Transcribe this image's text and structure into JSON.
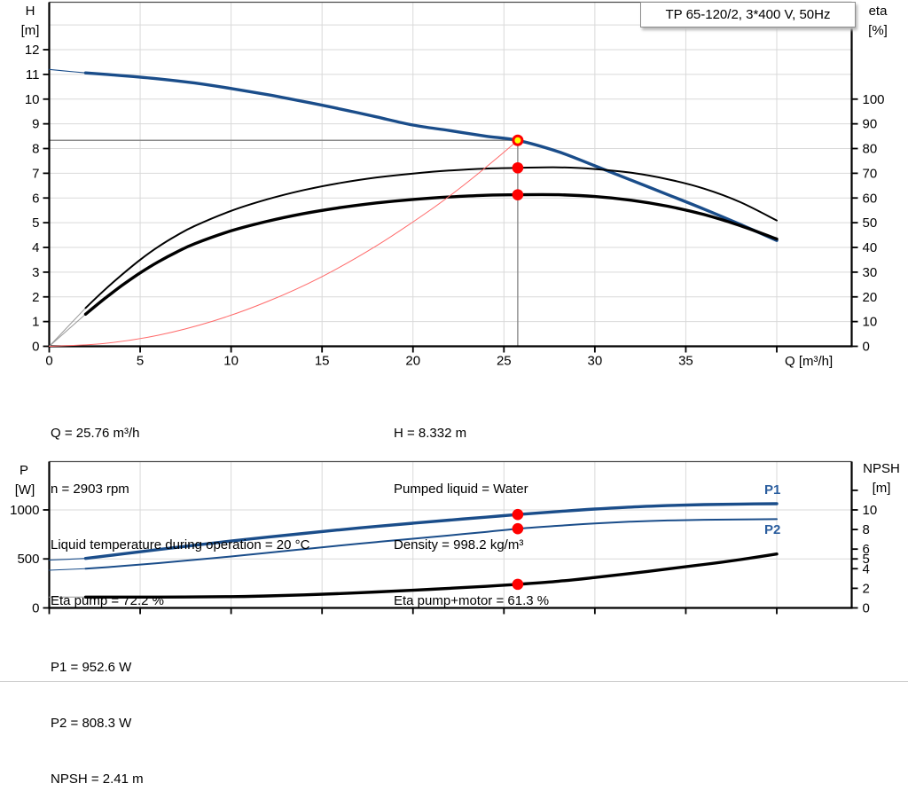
{
  "title_box": {
    "label": "TP 65-120/2, 3*400 V, 50Hz"
  },
  "labels": {
    "h": "H",
    "h_unit": "[m]",
    "eta": "eta",
    "eta_unit": "[%]",
    "q": "Q [m³/h]",
    "p": "P",
    "p_unit": "[W]",
    "npsh": "NPSH",
    "npsh_unit": "[m]",
    "p1": "P1",
    "p2": "P2"
  },
  "info_top": {
    "left": [
      "Q = 25.76 m³/h",
      "n = 2903 rpm",
      "Liquid temperature during operation = 20 °C",
      "Eta pump = 72.2 %"
    ],
    "right": [
      "H = 8.332 m",
      "Pumped liquid = Water",
      "Density = 998.2 kg/m³",
      "Eta pump+motor = 61.3 %"
    ]
  },
  "info_bottom": [
    "P1 = 952.6 W",
    "P2 = 808.3 W",
    "NPSH = 2.41 m"
  ],
  "colors": {
    "curve_blue": "#1a4d8a",
    "label_blue": "#2a5d9e",
    "curve_black": "#000000",
    "system_red": "#ff6a6a",
    "dot_red": "#ff0000",
    "dot_yellow": "#ffff00",
    "lead_gray": "#999999",
    "grid": "#d9d9d9",
    "marker_gray": "#8a8a8a"
  },
  "operating_point": {
    "q": 25.76,
    "h": 8.332,
    "eta_pump": 72.2,
    "eta_pump_motor": 61.3,
    "p1": 952.6,
    "p2": 808.3,
    "npsh": 2.41
  },
  "chart_data": [
    {
      "type": "line",
      "name": "hq-eta-chart",
      "title": "TP 65-120/2, 3*400 V, 50Hz",
      "xlabel": "Q [m³/h]",
      "ylabel_left": "H [m]",
      "ylabel_right": "eta [%]",
      "x_range": [
        0,
        44.12
      ],
      "y_left_range": [
        0,
        13.92
      ],
      "y_right_range": [
        0,
        139.2
      ],
      "x_ticks_labeled": [
        0,
        5,
        10,
        15,
        20,
        25,
        30,
        35
      ],
      "x_ticks_unlabeled": [
        40
      ],
      "y_ticks_left": [
        0,
        1,
        2,
        3,
        4,
        5,
        6,
        7,
        8,
        9,
        10,
        11,
        12
      ],
      "y_ticks_right": [
        0,
        10,
        20,
        30,
        40,
        50,
        60,
        70,
        80,
        90,
        100
      ],
      "y_ticks_right_unlabeled": [],
      "grid_x": [
        5,
        10,
        15,
        20,
        25,
        30,
        35,
        40
      ],
      "grid_y_right": [
        10,
        20,
        30,
        40,
        50,
        60,
        70,
        80,
        90,
        100,
        110,
        120,
        130
      ],
      "grid_y_left": [],
      "marker_lines": [
        {
          "axis": "left",
          "from": [
            0,
            8.332
          ],
          "to": [
            25.76,
            8.332
          ]
        },
        {
          "axis": "left",
          "from": [
            25.76,
            8.332
          ],
          "to": [
            25.76,
            0
          ]
        }
      ],
      "series": [
        {
          "name": "h-curve-lead",
          "axis": "left",
          "color": "#1a4d8a",
          "width": 1.1,
          "points": [
            [
              0,
              11.2
            ],
            [
              1,
              11.13
            ],
            [
              2,
              11.06
            ]
          ]
        },
        {
          "name": "h-curve",
          "axis": "left",
          "color": "#1a4d8a",
          "width": 3.4,
          "points": [
            [
              2,
              11.06
            ],
            [
              4,
              10.95
            ],
            [
              6,
              10.82
            ],
            [
              8,
              10.65
            ],
            [
              10,
              10.43
            ],
            [
              12,
              10.18
            ],
            [
              14,
              9.9
            ],
            [
              16,
              9.6
            ],
            [
              18,
              9.28
            ],
            [
              20,
              8.95
            ],
            [
              22,
              8.73
            ],
            [
              24,
              8.5
            ],
            [
              25.76,
              8.33
            ],
            [
              28,
              7.87
            ],
            [
              30,
              7.3
            ],
            [
              32,
              6.72
            ],
            [
              34,
              6.14
            ],
            [
              36,
              5.55
            ],
            [
              38,
              4.93
            ],
            [
              40,
              4.28
            ]
          ]
        },
        {
          "name": "eta-pump-lead",
          "axis": "right",
          "color": "#999999",
          "width": 1,
          "points": [
            [
              0,
              0
            ],
            [
              2,
              15.5
            ]
          ]
        },
        {
          "name": "eta-pump-curve",
          "axis": "right",
          "color": "#000000",
          "width": 2,
          "points": [
            [
              2,
              15.5
            ],
            [
              3,
              22.5
            ],
            [
              4,
              29
            ],
            [
              5,
              35
            ],
            [
              6,
              40.3
            ],
            [
              7,
              44.8
            ],
            [
              8,
              48.7
            ],
            [
              10,
              54.8
            ],
            [
              12,
              59.5
            ],
            [
              14,
              63.2
            ],
            [
              16,
              66.1
            ],
            [
              18,
              68.3
            ],
            [
              20,
              69.9
            ],
            [
              22,
              71.1
            ],
            [
              24,
              71.9
            ],
            [
              25.76,
              72.2
            ],
            [
              28,
              72.4
            ],
            [
              30,
              71.7
            ],
            [
              32,
              70.2
            ],
            [
              34,
              67.6
            ],
            [
              36,
              63.8
            ],
            [
              38,
              58.3
            ],
            [
              40,
              50.9
            ]
          ]
        },
        {
          "name": "eta-pump-motor-lead",
          "axis": "right",
          "color": "#999999",
          "width": 1,
          "points": [
            [
              0,
              0
            ],
            [
              2,
              13
            ]
          ]
        },
        {
          "name": "eta-pump-motor-curve",
          "axis": "right",
          "color": "#000000",
          "width": 3.4,
          "points": [
            [
              2,
              13
            ],
            [
              3,
              19
            ],
            [
              4,
              24.6
            ],
            [
              5,
              29.7
            ],
            [
              6,
              34.2
            ],
            [
              7,
              38.1
            ],
            [
              8,
              41.5
            ],
            [
              10,
              46.7
            ],
            [
              12,
              50.6
            ],
            [
              14,
              53.7
            ],
            [
              16,
              56.1
            ],
            [
              18,
              58
            ],
            [
              20,
              59.4
            ],
            [
              22,
              60.4
            ],
            [
              24,
              61.1
            ],
            [
              25.76,
              61.3
            ],
            [
              28,
              61.3
            ],
            [
              30,
              60.6
            ],
            [
              32,
              59.1
            ],
            [
              34,
              56.7
            ],
            [
              36,
              53.3
            ],
            [
              38,
              48.8
            ],
            [
              40,
              43.4
            ]
          ]
        },
        {
          "name": "system-curve",
          "axis": "left",
          "color": "#ff6a6a",
          "width": 1,
          "points": [
            [
              0,
              0
            ],
            [
              3,
              0.11
            ],
            [
              6,
              0.45
            ],
            [
              9,
              1.02
            ],
            [
              12,
              1.81
            ],
            [
              15,
              2.82
            ],
            [
              18,
              4.07
            ],
            [
              21,
              5.54
            ],
            [
              23,
              6.64
            ],
            [
              24.5,
              7.54
            ],
            [
              25.76,
              8.33
            ]
          ]
        }
      ],
      "points": [
        {
          "name": "duty-point",
          "axis": "left",
          "q": 25.76,
          "v": 8.332,
          "style": "yellow"
        },
        {
          "name": "eta-pump-point",
          "axis": "right",
          "q": 25.76,
          "v": 72.2,
          "style": "red"
        },
        {
          "name": "eta-pump-motor-point",
          "axis": "right",
          "q": 25.76,
          "v": 61.3,
          "style": "red"
        }
      ]
    },
    {
      "type": "line",
      "name": "power-npsh-chart",
      "xlabel": "",
      "ylabel_left": "P [W]",
      "ylabel_right": "NPSH [m]",
      "x_range": [
        0,
        44.12
      ],
      "y_left_range": [
        0,
        1493
      ],
      "y_right_range": [
        0,
        14.93
      ],
      "x_ticks_labeled": [],
      "x_ticks_unlabeled": [
        0,
        5,
        10,
        15,
        20,
        25,
        30,
        35,
        40
      ],
      "y_ticks_left": [
        0,
        500,
        1000
      ],
      "y_ticks_right": [
        0,
        2,
        4,
        5,
        6,
        8,
        10
      ],
      "y_ticks_right_unlabeled": [
        12
      ],
      "grid_x": [
        5,
        10,
        15,
        20,
        25,
        30,
        35,
        40
      ],
      "grid_y_right": [],
      "grid_y_left": [
        500,
        1000
      ],
      "marker_lines": [],
      "series": [
        {
          "name": "p1-curve-lead",
          "axis": "left",
          "color": "#1a4d8a",
          "width": 1.1,
          "points": [
            [
              0,
              488
            ],
            [
              2,
              505
            ]
          ]
        },
        {
          "name": "p1-curve",
          "axis": "left",
          "color": "#1a4d8a",
          "width": 3.4,
          "points": [
            [
              2,
              505
            ],
            [
              4,
              550
            ],
            [
              6,
              595
            ],
            [
              8,
              640
            ],
            [
              10,
              682
            ],
            [
              12,
              722
            ],
            [
              14,
              760
            ],
            [
              16,
              797
            ],
            [
              18,
              832
            ],
            [
              20,
              864
            ],
            [
              22,
              896
            ],
            [
              24,
              926
            ],
            [
              25.76,
              952.6
            ],
            [
              28,
              984
            ],
            [
              30,
              1009
            ],
            [
              32,
              1029
            ],
            [
              34,
              1044
            ],
            [
              36,
              1054
            ],
            [
              38,
              1060
            ],
            [
              40,
              1063
            ]
          ]
        },
        {
          "name": "p2-curve-lead",
          "axis": "left",
          "color": "#1a4d8a",
          "width": 1,
          "points": [
            [
              0,
              385
            ],
            [
              2,
              400
            ]
          ]
        },
        {
          "name": "p2-curve",
          "axis": "left",
          "color": "#1a4d8a",
          "width": 2,
          "points": [
            [
              2,
              400
            ],
            [
              4,
              427
            ],
            [
              6,
              457
            ],
            [
              8,
              490
            ],
            [
              10,
              525
            ],
            [
              12,
              562
            ],
            [
              14,
              600
            ],
            [
              16,
              637
            ],
            [
              18,
              672
            ],
            [
              20,
              706
            ],
            [
              22,
              740
            ],
            [
              24,
              775
            ],
            [
              25.76,
              808.3
            ],
            [
              28,
              838
            ],
            [
              30,
              862
            ],
            [
              32,
              880
            ],
            [
              34,
              892
            ],
            [
              36,
              899
            ],
            [
              38,
              903
            ],
            [
              40,
              906
            ]
          ]
        },
        {
          "name": "npsh-curve-lead",
          "axis": "right",
          "color": "#999999",
          "width": 1,
          "points": [
            [
              0,
              1.1
            ],
            [
              2,
              1.1
            ]
          ]
        },
        {
          "name": "npsh-curve",
          "axis": "right",
          "color": "#000000",
          "width": 3.4,
          "points": [
            [
              2,
              1.1
            ],
            [
              6,
              1.1
            ],
            [
              10,
              1.15
            ],
            [
              12,
              1.22
            ],
            [
              14,
              1.33
            ],
            [
              16,
              1.47
            ],
            [
              18,
              1.63
            ],
            [
              20,
              1.8
            ],
            [
              22,
              2.0
            ],
            [
              24,
              2.2
            ],
            [
              25.76,
              2.41
            ],
            [
              28,
              2.72
            ],
            [
              30,
              3.1
            ],
            [
              32,
              3.52
            ],
            [
              34,
              3.97
            ],
            [
              36,
              4.43
            ],
            [
              38,
              4.93
            ],
            [
              40,
              5.5
            ]
          ]
        }
      ],
      "points": [
        {
          "name": "p1-point",
          "axis": "left",
          "q": 25.76,
          "v": 952.6,
          "style": "red"
        },
        {
          "name": "p2-point",
          "axis": "left",
          "q": 25.76,
          "v": 808.3,
          "style": "red"
        },
        {
          "name": "npsh-point",
          "axis": "right",
          "q": 25.76,
          "v": 2.41,
          "style": "red"
        }
      ]
    }
  ]
}
